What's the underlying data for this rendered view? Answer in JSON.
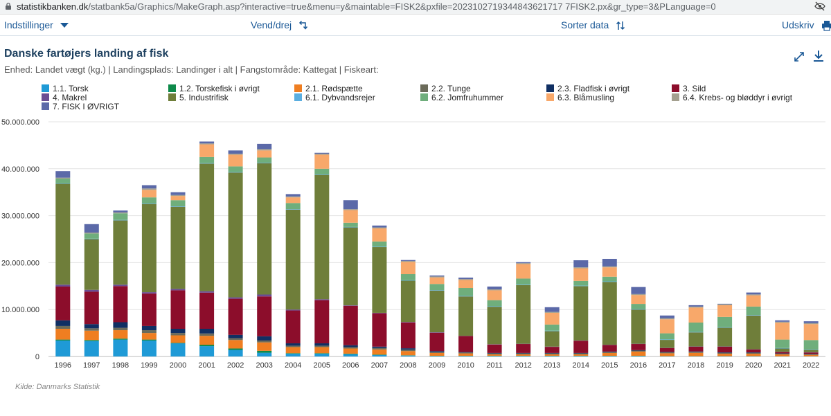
{
  "browser": {
    "url_host": "statistikbanken.dk",
    "url_path": "/statbank5a/Graphics/MakeGraph.asp?interactive=true&menu=y&maintable=FISK2&pxfile=2023102719344843621717 7FISK2.px&gr_type=3&PLanguage=0"
  },
  "toolbar": {
    "settings_label": "Indstillinger",
    "pivot_label": "Vend/drej",
    "sort_label": "Sorter data",
    "print_label": "Udskriv"
  },
  "chart_data": {
    "type": "bar",
    "stacked": true,
    "title": "Danske fartøjers landing af fisk",
    "subtitle": "Enhed: Landet vægt (kg.) | Landingsplads: Landinger i alt | Fangstområde: Kattegat | Fiskeart:",
    "source": "Kilde: Danmarks Statistik",
    "ylim": [
      0,
      50000000
    ],
    "yticks": [
      "0",
      "10.000.000",
      "20.000.000",
      "30.000.000",
      "40.000.000",
      "50.000.000"
    ],
    "ytick_values": [
      0,
      10000000,
      20000000,
      30000000,
      40000000,
      50000000
    ],
    "grid": true,
    "legend_position": "top",
    "categories": [
      "1996",
      "1997",
      "1998",
      "1999",
      "2000",
      "2001",
      "2002",
      "2003",
      "2004",
      "2005",
      "2006",
      "2007",
      "2008",
      "2009",
      "2010",
      "2011",
      "2012",
      "2013",
      "2014",
      "2015",
      "2016",
      "2017",
      "2018",
      "2019",
      "2020",
      "2021",
      "2022"
    ],
    "series": [
      {
        "name": "1.1. Torsk",
        "color": "#1f9ad6",
        "values": [
          3400000,
          3300000,
          3600000,
          3400000,
          2800000,
          2200000,
          1400000,
          800000,
          600000,
          600000,
          500000,
          300000,
          200000,
          100000,
          100000,
          100000,
          100000,
          100000,
          100000,
          100000,
          100000,
          50000,
          50000,
          50000,
          50000,
          30000,
          30000
        ]
      },
      {
        "name": "1.2. Torskefisk i øvrigt",
        "color": "#0e8a4a",
        "values": [
          200000,
          200000,
          200000,
          200000,
          100000,
          300000,
          300000,
          400000,
          100000,
          100000,
          100000,
          100000,
          50000,
          50000,
          50000,
          50000,
          50000,
          50000,
          50000,
          50000,
          50000,
          30000,
          30000,
          30000,
          30000,
          20000,
          20000
        ]
      },
      {
        "name": "2.1. Rødspætte",
        "color": "#ef7e21",
        "values": [
          2300000,
          2000000,
          1800000,
          1400000,
          1600000,
          1900000,
          1800000,
          1800000,
          1300000,
          1300000,
          1100000,
          1100000,
          900000,
          600000,
          500000,
          300000,
          300000,
          300000,
          300000,
          600000,
          900000,
          600000,
          700000,
          500000,
          500000,
          400000,
          300000
        ]
      },
      {
        "name": "2.2. Tunge",
        "color": "#6b6b5a",
        "values": [
          600000,
          500000,
          500000,
          600000,
          500000,
          500000,
          400000,
          400000,
          300000,
          300000,
          300000,
          300000,
          300000,
          200000,
          200000,
          200000,
          200000,
          200000,
          200000,
          200000,
          200000,
          200000,
          200000,
          200000,
          200000,
          100000,
          100000
        ]
      },
      {
        "name": "2.3. Fladfisk i øvrigt",
        "color": "#102f63",
        "values": [
          1200000,
          900000,
          1200000,
          900000,
          900000,
          1000000,
          700000,
          900000,
          500000,
          500000,
          400000,
          300000,
          300000,
          200000,
          100000,
          100000,
          100000,
          100000,
          100000,
          100000,
          100000,
          100000,
          100000,
          100000,
          100000,
          100000,
          100000
        ]
      },
      {
        "name": "3. Sild",
        "color": "#8c0d2b",
        "values": [
          7200000,
          6900000,
          7700000,
          6900000,
          8200000,
          7700000,
          7700000,
          8500000,
          7000000,
          9200000,
          8400000,
          7100000,
          5500000,
          3900000,
          3400000,
          1800000,
          1900000,
          1300000,
          2600000,
          1400000,
          1300000,
          800000,
          1000000,
          1200000,
          600000,
          300000,
          300000
        ]
      },
      {
        "name": "4. Makrel",
        "color": "#6a4c93",
        "values": [
          400000,
          400000,
          300000,
          300000,
          300000,
          300000,
          300000,
          400000,
          200000,
          200000,
          100000,
          100000,
          100000,
          100000,
          50000,
          50000,
          50000,
          50000,
          50000,
          50000,
          50000,
          50000,
          50000,
          50000,
          50000,
          50000,
          50000
        ]
      },
      {
        "name": "5. Industrifisk",
        "color": "#6f7e3a",
        "values": [
          21500000,
          10800000,
          13700000,
          18800000,
          17500000,
          27200000,
          26600000,
          28000000,
          21300000,
          26500000,
          16600000,
          14000000,
          8800000,
          8900000,
          8400000,
          8000000,
          12500000,
          3300000,
          11600000,
          13400000,
          7300000,
          1700000,
          3000000,
          4000000,
          7200000,
          700000,
          500000
        ]
      },
      {
        "name": "6.1. Dybvandsrejer",
        "color": "#5aaee0",
        "values": [
          100000,
          100000,
          100000,
          100000,
          100000,
          100000,
          100000,
          100000,
          100000,
          100000,
          100000,
          100000,
          100000,
          100000,
          100000,
          100000,
          100000,
          100000,
          100000,
          100000,
          100000,
          100000,
          100000,
          100000,
          100000,
          100000,
          100000
        ]
      },
      {
        "name": "6.2. Jomfruhummer",
        "color": "#6fae7c",
        "values": [
          1000000,
          1100000,
          1400000,
          1300000,
          1300000,
          1300000,
          1200000,
          1100000,
          1300000,
          1200000,
          900000,
          1100000,
          1300000,
          1300000,
          1700000,
          1300000,
          1300000,
          1300000,
          1000000,
          1000000,
          1100000,
          1300000,
          2000000,
          2200000,
          1800000,
          1800000,
          2000000
        ]
      },
      {
        "name": "6.3. Blåmusling",
        "color": "#f8a86a",
        "values": [
          0,
          0,
          0,
          1600000,
          900000,
          2700000,
          2500000,
          1500000,
          1200000,
          3000000,
          2700000,
          2800000,
          2600000,
          1400000,
          1700000,
          2100000,
          3100000,
          2500000,
          2700000,
          2000000,
          1900000,
          3000000,
          3200000,
          2500000,
          2400000,
          3600000,
          3400000
        ]
      },
      {
        "name": "6.4. Krebs- og bløddyr i øvrigt",
        "color": "#a4a08f",
        "values": [
          200000,
          200000,
          200000,
          300000,
          200000,
          200000,
          200000,
          300000,
          200000,
          200000,
          200000,
          200000,
          200000,
          200000,
          200000,
          200000,
          200000,
          200000,
          200000,
          200000,
          200000,
          200000,
          200000,
          200000,
          200000,
          200000,
          200000
        ]
      },
      {
        "name": "7. FISK I ØVRIGT",
        "color": "#5b69a8",
        "values": [
          1400000,
          1800000,
          400000,
          700000,
          600000,
          400000,
          700000,
          1100000,
          500000,
          200000,
          1900000,
          400000,
          200000,
          200000,
          300000,
          600000,
          200000,
          1000000,
          1500000,
          1600000,
          1500000,
          600000,
          300000,
          100000,
          400000,
          300000,
          400000
        ]
      }
    ]
  }
}
